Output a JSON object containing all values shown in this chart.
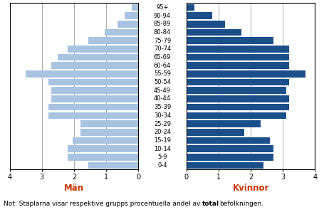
{
  "age_groups": [
    "0-4",
    "5-9",
    "10-14",
    "15-19",
    "20-24",
    "25-29",
    "30-34",
    "35-39",
    "40-44",
    "45-49",
    "50-54",
    "55-59",
    "60-64",
    "65-69",
    "70-74",
    "75-79",
    "80-84",
    "85-89",
    "90-94",
    "95+"
  ],
  "men": [
    1.55,
    2.2,
    2.2,
    2.05,
    1.8,
    1.8,
    2.8,
    2.8,
    2.7,
    2.7,
    2.8,
    3.5,
    2.7,
    2.5,
    2.2,
    1.55,
    1.05,
    0.65,
    0.42,
    0.2
  ],
  "women": [
    2.4,
    2.7,
    2.7,
    2.6,
    1.8,
    2.3,
    3.1,
    3.2,
    3.2,
    3.1,
    3.2,
    3.7,
    3.2,
    3.2,
    3.2,
    2.7,
    1.7,
    1.2,
    0.8,
    0.25
  ],
  "men_color": "#a8c4e0",
  "women_color": "#1a4f8a",
  "xlabel_men": "Män",
  "xlabel_women": "Kvinnor",
  "xlabel_color": "#cc3300",
  "xlim": 4,
  "tick_values": [
    0,
    1,
    2,
    3,
    4
  ],
  "grid_color": "#888888",
  "grid_lw": 0.5,
  "note_plain": "Not: Staplarna visar respektive grupps procentuella andel av ",
  "note_bold": "total",
  "note_end": "befolkningen.",
  "bar_height": 0.82,
  "fig_w": 4.56,
  "fig_h": 2.98,
  "dpi": 100
}
